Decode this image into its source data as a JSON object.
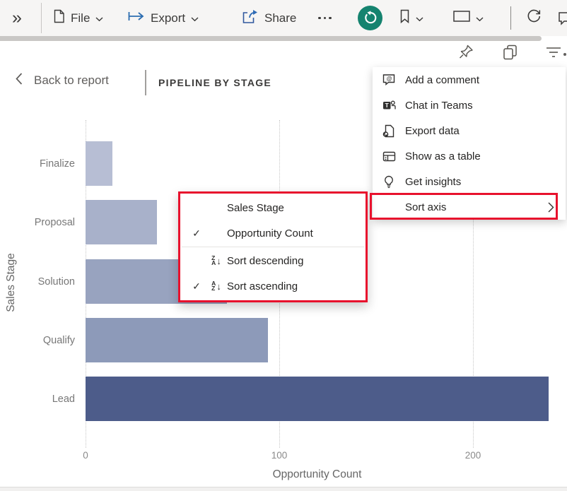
{
  "toolbar": {
    "collapse_label": "»",
    "file_label": "File",
    "export_label": "Export",
    "share_label": "Share",
    "icons": [
      "collapse-icon",
      "file-page-icon",
      "chevron-down-icon",
      "export-arrow-icon",
      "share-icon",
      "more-icon",
      "reset-icon",
      "bookmark-icon",
      "view-frame-icon",
      "refresh-icon",
      "comment-bubble-icon-partial"
    ],
    "reset_button_color": "#15836F"
  },
  "header": {
    "back_label": "Back to report",
    "title": "PIPELINE BY STAGE",
    "visual_action_icons": [
      "pin-icon",
      "copy-icon",
      "filter-icon",
      "more-dot-icon"
    ]
  },
  "context_menu": {
    "items": [
      {
        "icon": "comment-mention-icon",
        "label": "Add a comment"
      },
      {
        "icon": "teams-icon",
        "label": "Chat in Teams"
      },
      {
        "icon": "export-data-icon",
        "label": "Export data"
      },
      {
        "icon": "show-table-icon",
        "label": "Show as a table"
      },
      {
        "icon": "insights-bulb-icon",
        "label": "Get insights"
      },
      {
        "icon": "none",
        "label": "Sort axis",
        "has_submenu": true,
        "highlighted": true
      }
    ]
  },
  "sort_submenu": {
    "highlighted": true,
    "items": [
      {
        "label": "Sales Stage",
        "checked": false,
        "icon": "none"
      },
      {
        "label": "Opportunity Count",
        "checked": true,
        "icon": "none"
      },
      {
        "label": "Sort descending",
        "checked": false,
        "icon": "sort-descending-icon"
      },
      {
        "label": "Sort ascending",
        "checked": true,
        "icon": "sort-ascending-icon"
      }
    ],
    "check_glyph": "✓"
  },
  "chart_data": {
    "type": "bar",
    "orientation": "horizontal",
    "title": "PIPELINE BY STAGE",
    "categories": [
      "Finalize",
      "Proposal",
      "Solution",
      "Qualify",
      "Lead"
    ],
    "values": [
      14,
      37,
      73,
      94,
      239
    ],
    "xlabel": "Opportunity Count",
    "ylabel": "Sales Stage",
    "xticks": [
      0,
      100,
      200
    ],
    "xlim": [
      0,
      244
    ],
    "grid": "dotted-vertical",
    "legend": "none",
    "bar_colors": [
      "#b7bed4",
      "#a8b1ca",
      "#98a3bf",
      "#8d9ab9",
      "#4d5c8a"
    ]
  },
  "colors": {
    "annotation_red": "#e8112d",
    "toolbar_bg": "#f6f5f4",
    "accent_teal": "#15836F",
    "title_text": "#3b3a39",
    "menu_text": "#252423"
  }
}
